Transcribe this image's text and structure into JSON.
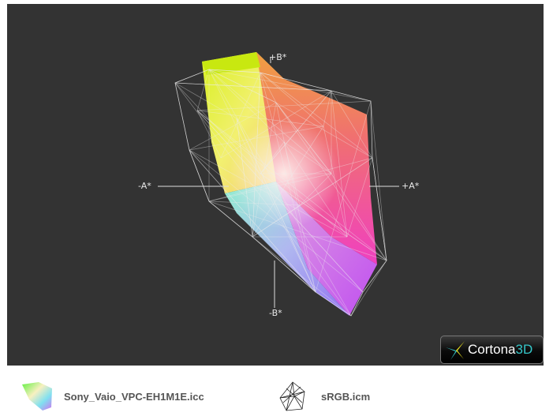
{
  "viewer": {
    "axes": {
      "plus_b": "+B*",
      "minus_b": "-B*",
      "plus_a": "+A*",
      "minus_a": "-A*"
    },
    "logo": {
      "name": "Cortona",
      "suffix": "3D"
    },
    "background_color": "#333333"
  },
  "legend": [
    {
      "label": "Sony_Vaio_VPC-EH1M1E.icc",
      "icon": "solid-gamut-icon"
    },
    {
      "label": "sRGB.icm",
      "icon": "wireframe-gamut-icon"
    }
  ]
}
